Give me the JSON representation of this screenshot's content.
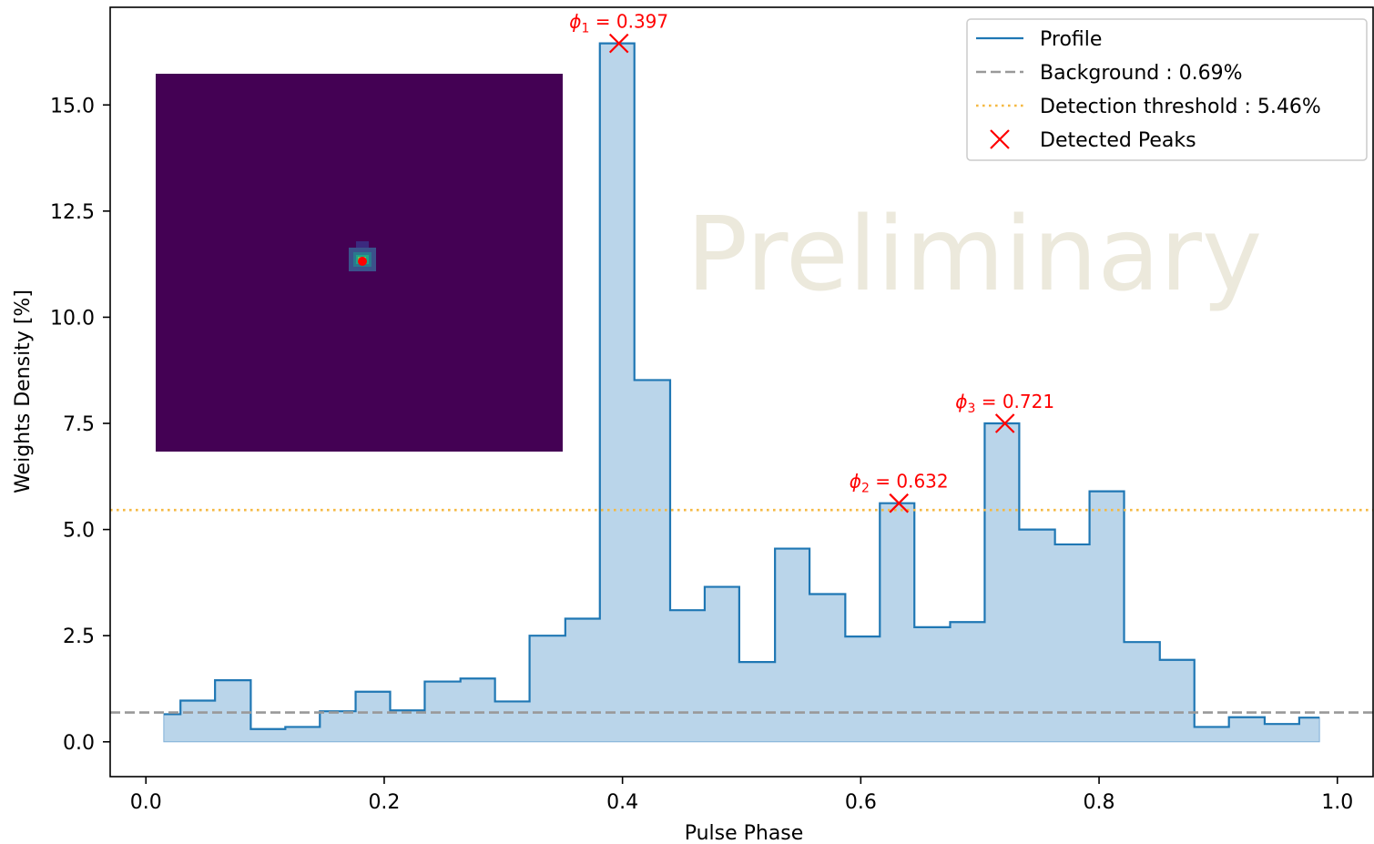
{
  "chart_data": {
    "type": "histogram",
    "watermark": "Preliminary",
    "xlabel": "Pulse Phase",
    "ylabel": "Weights Density [%]",
    "xlim": [
      -0.03,
      1.03
    ],
    "ylim": [
      -0.82,
      17.3
    ],
    "xticks": [
      0.0,
      0.2,
      0.4,
      0.6,
      0.8,
      1.0
    ],
    "xtick_labels": [
      "0.0",
      "0.2",
      "0.4",
      "0.6",
      "0.8",
      "1.0"
    ],
    "yticks": [
      0.0,
      2.5,
      5.0,
      7.5,
      10.0,
      12.5,
      15.0
    ],
    "ytick_labels": [
      "0.0",
      "2.5",
      "5.0",
      "7.5",
      "10.0",
      "12.5",
      "15.0"
    ],
    "grid": false,
    "legend_position": "top-right",
    "colors": {
      "profile": "#1f77b4",
      "fill": "#bad5ea",
      "background": "#999999",
      "threshold": "#f5b942",
      "peaks": "#ff0000",
      "inset_bg": "#440154"
    },
    "profile": {
      "bin_edges": [
        0.015,
        0.029,
        0.058,
        0.088,
        0.117,
        0.146,
        0.176,
        0.205,
        0.234,
        0.264,
        0.293,
        0.322,
        0.352,
        0.381,
        0.41,
        0.44,
        0.469,
        0.498,
        0.528,
        0.557,
        0.587,
        0.616,
        0.645,
        0.675,
        0.704,
        0.733,
        0.763,
        0.792,
        0.821,
        0.851,
        0.88,
        0.909,
        0.939,
        0.968,
        0.985
      ],
      "values": [
        0.65,
        0.97,
        1.45,
        0.3,
        0.35,
        0.72,
        1.18,
        0.74,
        1.42,
        1.49,
        0.95,
        2.5,
        2.9,
        16.45,
        8.52,
        3.1,
        3.65,
        1.88,
        4.55,
        3.48,
        2.48,
        5.62,
        2.7,
        2.82,
        7.5,
        5.0,
        4.65,
        5.9,
        2.35,
        1.93,
        0.35,
        0.58,
        0.42,
        0.57
      ]
    },
    "background": {
      "value": 0.69,
      "label": "Background : 0.69%"
    },
    "threshold": {
      "value": 5.46,
      "label": "Detection threshold : 5.46%"
    },
    "peaks": {
      "legend_label": "Detected Peaks",
      "points": [
        {
          "x": 0.397,
          "y": 16.45,
          "label_sym": "ϕ",
          "label_sub": "1",
          "label_val": " = 0.397"
        },
        {
          "x": 0.632,
          "y": 5.62,
          "label_sym": "ϕ",
          "label_sub": "2",
          "label_val": " = 0.632"
        },
        {
          "x": 0.721,
          "y": 7.5,
          "label_sym": "ϕ",
          "label_sub": "3",
          "label_val": " = 0.721"
        }
      ]
    },
    "legend": [
      {
        "key": "profile",
        "label": "Profile"
      },
      {
        "key": "background",
        "label": "Background : 0.69%"
      },
      {
        "key": "threshold",
        "label": "Detection threshold : 5.46%"
      },
      {
        "key": "peaks",
        "label": "Detected Peaks"
      }
    ],
    "inset": {
      "type": "heatmap",
      "background_color": "#440154",
      "center_marker_color": "#ff0000"
    }
  }
}
